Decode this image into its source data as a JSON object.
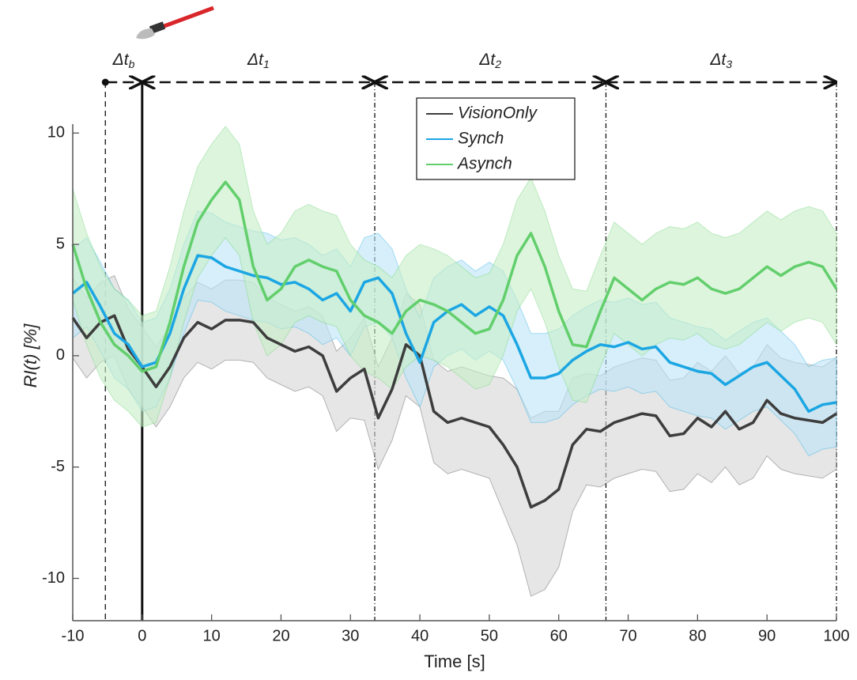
{
  "chart_data": {
    "type": "line",
    "x_label": "Time [s]",
    "y_label": "RI(t) [%]",
    "x": [
      -10,
      -8,
      -6,
      -4,
      -2,
      0,
      2,
      4,
      6,
      8,
      10,
      12,
      14,
      16,
      18,
      20,
      22,
      24,
      26,
      28,
      30,
      32,
      34,
      36,
      38,
      40,
      42,
      44,
      46,
      48,
      50,
      52,
      54,
      56,
      58,
      60,
      62,
      64,
      66,
      68,
      70,
      72,
      74,
      76,
      78,
      80,
      82,
      84,
      86,
      88,
      90,
      92,
      94,
      96,
      98,
      100
    ],
    "xlim": [
      -10,
      100
    ],
    "xticks": [
      -10,
      0,
      10,
      20,
      30,
      40,
      50,
      60,
      70,
      80,
      90,
      100
    ],
    "ylim": [
      -11.9,
      10.4
    ],
    "yticks": [
      -10,
      -5,
      0,
      5,
      10
    ],
    "legend": "top-center",
    "series": [
      {
        "name": "VisionOnly",
        "color": "#3d3d3d",
        "band_color": "#d6d6d6",
        "values": [
          1.7,
          0.8,
          1.5,
          1.8,
          0.3,
          -0.5,
          -1.4,
          -0.5,
          0.8,
          1.5,
          1.2,
          1.6,
          1.6,
          1.5,
          0.8,
          0.5,
          0.2,
          0.4,
          0.0,
          -1.6,
          -1.0,
          -0.6,
          -2.8,
          -1.5,
          0.5,
          0.0,
          -2.5,
          -3.0,
          -2.8,
          -3.0,
          -3.2,
          -4.0,
          -5.0,
          -6.8,
          -6.5,
          -6.0,
          -4.0,
          -3.3,
          -3.4,
          -3.0,
          -2.8,
          -2.6,
          -2.7,
          -3.6,
          -3.5,
          -2.8,
          -3.2,
          -2.5,
          -3.3,
          -3.0,
          -2.0,
          -2.6,
          -2.8,
          -2.9,
          -3.0,
          -2.6
        ],
        "upper": [
          3.5,
          2.6,
          3.3,
          3.6,
          2.1,
          1.3,
          0.4,
          1.3,
          2.6,
          3.3,
          3.0,
          3.4,
          3.4,
          3.3,
          2.6,
          2.3,
          2.0,
          2.2,
          1.8,
          0.2,
          0.8,
          1.7,
          -0.5,
          0.8,
          2.8,
          2.3,
          -0.2,
          -0.7,
          -0.5,
          -0.7,
          -0.9,
          -1.0,
          -1.5,
          -2.8,
          -2.5,
          -2.5,
          -1.0,
          -0.8,
          -0.9,
          -0.5,
          -0.3,
          -0.1,
          -0.2,
          -1.1,
          -1.0,
          -0.3,
          -0.7,
          0.0,
          -0.8,
          -0.5,
          0.5,
          -0.1,
          -0.3,
          -0.4,
          -0.5,
          -0.1
        ],
        "lower": [
          -0.1,
          -1.0,
          -0.3,
          0.0,
          -1.5,
          -2.3,
          -3.2,
          -2.3,
          -1.0,
          -0.3,
          -0.6,
          -0.2,
          -0.2,
          -0.3,
          -1.0,
          -1.3,
          -1.6,
          -1.4,
          -1.8,
          -3.4,
          -2.8,
          -2.9,
          -5.1,
          -3.8,
          -1.8,
          -2.3,
          -4.8,
          -5.3,
          -5.1,
          -5.3,
          -5.5,
          -7.0,
          -8.5,
          -10.8,
          -10.5,
          -9.5,
          -7.0,
          -5.8,
          -5.9,
          -5.5,
          -5.3,
          -5.1,
          -5.2,
          -6.1,
          -6.0,
          -5.3,
          -5.7,
          -5.0,
          -5.8,
          -5.5,
          -4.5,
          -5.1,
          -5.3,
          -5.4,
          -5.5,
          -5.1
        ]
      },
      {
        "name": "Synch",
        "color": "#1ba6e3",
        "band_color": "#bde4f6",
        "values": [
          2.8,
          3.3,
          2.2,
          1.0,
          0.5,
          -0.5,
          -0.3,
          1.0,
          3.0,
          4.5,
          4.4,
          4.0,
          3.8,
          3.6,
          3.5,
          3.2,
          3.3,
          3.0,
          2.5,
          2.8,
          2.0,
          3.3,
          3.5,
          2.8,
          1.0,
          -0.3,
          1.5,
          2.0,
          2.3,
          1.8,
          2.2,
          1.8,
          0.5,
          -1.0,
          -1.0,
          -0.8,
          -0.2,
          0.2,
          0.5,
          0.4,
          0.6,
          0.3,
          0.4,
          -0.3,
          -0.5,
          -0.7,
          -0.8,
          -1.3,
          -0.9,
          -0.5,
          -0.3,
          -0.9,
          -1.5,
          -2.5,
          -2.2,
          -2.1
        ],
        "upper": [
          4.8,
          5.3,
          4.2,
          3.0,
          2.5,
          1.5,
          1.7,
          3.0,
          5.0,
          6.5,
          6.4,
          6.0,
          5.8,
          5.6,
          5.5,
          5.2,
          5.3,
          5.0,
          4.5,
          4.8,
          4.0,
          5.3,
          5.5,
          4.8,
          3.0,
          1.7,
          3.5,
          4.0,
          4.3,
          3.8,
          4.2,
          3.8,
          2.5,
          1.0,
          1.0,
          1.2,
          1.8,
          2.2,
          2.5,
          2.4,
          2.6,
          2.3,
          2.4,
          1.7,
          1.5,
          1.3,
          1.2,
          0.7,
          1.1,
          1.5,
          1.7,
          1.1,
          0.5,
          -0.5,
          -0.2,
          -0.1
        ],
        "lower": [
          0.8,
          1.3,
          0.2,
          -1.0,
          -1.5,
          -2.5,
          -2.3,
          -1.0,
          1.0,
          2.5,
          2.4,
          2.0,
          1.8,
          1.6,
          1.5,
          1.2,
          1.3,
          1.0,
          0.5,
          0.8,
          0.0,
          1.3,
          1.5,
          0.8,
          -1.0,
          -2.3,
          -0.5,
          0.0,
          0.3,
          -0.2,
          0.2,
          -0.2,
          -1.5,
          -3.0,
          -3.0,
          -2.8,
          -2.2,
          -1.8,
          -1.5,
          -1.6,
          -1.4,
          -1.7,
          -1.6,
          -2.3,
          -2.5,
          -2.7,
          -2.8,
          -3.3,
          -2.9,
          -2.5,
          -2.3,
          -2.9,
          -3.5,
          -4.5,
          -4.2,
          -4.1
        ]
      },
      {
        "name": "Asynch",
        "color": "#62cf6c",
        "band_color": "#c6efc6",
        "values": [
          5.0,
          3.0,
          1.5,
          0.5,
          0.0,
          -0.7,
          -0.5,
          1.5,
          4.0,
          6.0,
          7.0,
          7.8,
          7.0,
          4.0,
          2.5,
          3.0,
          4.0,
          4.3,
          4.0,
          3.8,
          2.5,
          1.8,
          1.5,
          1.0,
          2.0,
          2.5,
          2.3,
          2.0,
          1.5,
          1.0,
          1.2,
          2.5,
          4.5,
          5.5,
          4.0,
          2.0,
          0.5,
          0.4,
          2.0,
          3.5,
          3.0,
          2.5,
          3.0,
          3.3,
          3.2,
          3.5,
          3.0,
          2.8,
          3.0,
          3.5,
          4.0,
          3.6,
          4.0,
          4.2,
          4.0,
          3.0
        ],
        "upper": [
          7.5,
          5.5,
          4.0,
          3.0,
          2.5,
          1.8,
          2.0,
          4.0,
          6.5,
          8.5,
          9.5,
          10.3,
          9.5,
          6.5,
          5.0,
          5.5,
          6.5,
          6.8,
          6.5,
          6.3,
          5.0,
          4.3,
          4.0,
          3.5,
          4.5,
          5.0,
          4.8,
          4.5,
          4.0,
          3.5,
          3.7,
          5.0,
          7.0,
          8.0,
          6.5,
          4.5,
          3.0,
          2.9,
          4.5,
          6.0,
          5.5,
          5.0,
          5.5,
          5.8,
          5.7,
          6.0,
          5.5,
          5.3,
          5.5,
          6.0,
          6.5,
          6.1,
          6.5,
          6.7,
          6.5,
          5.5
        ],
        "lower": [
          2.5,
          0.5,
          -1.0,
          -2.0,
          -2.5,
          -3.2,
          -3.0,
          -1.0,
          1.5,
          3.5,
          4.5,
          5.3,
          4.5,
          1.5,
          0.0,
          0.5,
          1.5,
          1.8,
          1.5,
          1.3,
          0.0,
          -0.7,
          -1.0,
          -1.5,
          -0.5,
          0.0,
          -0.2,
          -0.5,
          -1.0,
          -1.5,
          -1.3,
          0.0,
          2.0,
          3.0,
          1.5,
          -0.5,
          -2.0,
          -2.1,
          -0.5,
          1.0,
          0.5,
          0.0,
          0.5,
          0.8,
          0.7,
          1.0,
          0.5,
          0.3,
          0.5,
          1.0,
          1.5,
          1.1,
          1.5,
          1.7,
          1.5,
          0.5
        ]
      }
    ],
    "boundaries": [
      {
        "x": -5.3,
        "style": "dashed"
      },
      {
        "x": 0,
        "style": "solid"
      },
      {
        "x": 33.5,
        "style": "dashdot"
      },
      {
        "x": 66.8,
        "style": "dashdot"
      },
      {
        "x": 100,
        "style": "dashdot"
      }
    ],
    "phases": [
      {
        "label": "Δt",
        "sub": "b",
        "start": -5.3,
        "end": 0
      },
      {
        "label": "Δt",
        "sub": "1",
        "start": 0,
        "end": 33.5
      },
      {
        "label": "Δt",
        "sub": "2",
        "start": 33.5,
        "end": 66.8
      },
      {
        "label": "Δt",
        "sub": "3",
        "start": 66.8,
        "end": 100
      }
    ]
  }
}
